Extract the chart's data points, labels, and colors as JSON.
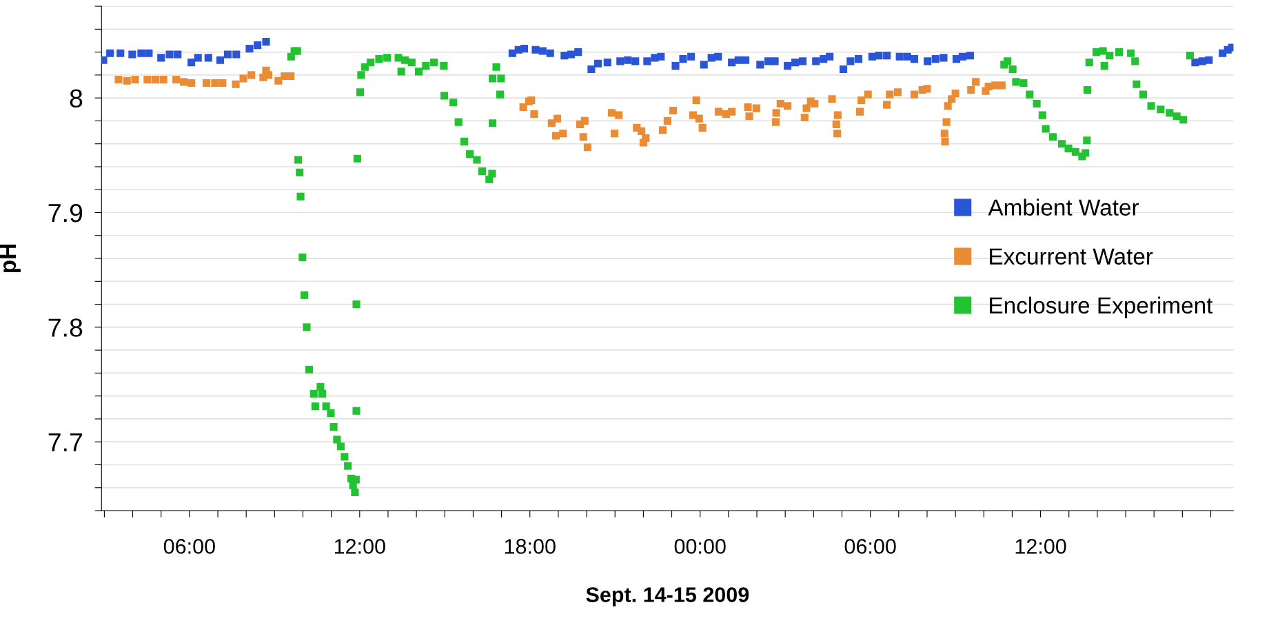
{
  "chart_data": {
    "type": "scatter",
    "xlabel": "Sept. 14-15 2009",
    "ylabel": "pH",
    "marker": "square",
    "grid": "y",
    "legend": "center right",
    "xlim": [
      "2009-09-14T02:54",
      "2009-09-15T18:48"
    ],
    "ylim": [
      7.64,
      8.08
    ],
    "xticks": [
      {
        "value": "2009-09-14T03:00",
        "label": null
      },
      {
        "value": "2009-09-14T04:00",
        "label": null
      },
      {
        "value": "2009-09-14T05:00",
        "label": null
      },
      {
        "value": "2009-09-14T06:00",
        "label": "06:00"
      },
      {
        "value": "2009-09-14T07:00",
        "label": null
      },
      {
        "value": "2009-09-14T08:00",
        "label": null
      },
      {
        "value": "2009-09-14T09:00",
        "label": null
      },
      {
        "value": "2009-09-14T10:00",
        "label": null
      },
      {
        "value": "2009-09-14T11:00",
        "label": null
      },
      {
        "value": "2009-09-14T12:00",
        "label": "12:00"
      },
      {
        "value": "2009-09-14T13:00",
        "label": null
      },
      {
        "value": "2009-09-14T14:00",
        "label": null
      },
      {
        "value": "2009-09-14T15:00",
        "label": null
      },
      {
        "value": "2009-09-14T16:00",
        "label": null
      },
      {
        "value": "2009-09-14T17:00",
        "label": null
      },
      {
        "value": "2009-09-14T18:00",
        "label": "18:00"
      },
      {
        "value": "2009-09-14T19:00",
        "label": null
      },
      {
        "value": "2009-09-14T20:00",
        "label": null
      },
      {
        "value": "2009-09-14T21:00",
        "label": null
      },
      {
        "value": "2009-09-14T22:00",
        "label": null
      },
      {
        "value": "2009-09-14T23:00",
        "label": null
      },
      {
        "value": "2009-09-15T00:00",
        "label": "00:00"
      },
      {
        "value": "2009-09-15T01:00",
        "label": null
      },
      {
        "value": "2009-09-15T02:00",
        "label": null
      },
      {
        "value": "2009-09-15T03:00",
        "label": null
      },
      {
        "value": "2009-09-15T04:00",
        "label": null
      },
      {
        "value": "2009-09-15T05:00",
        "label": null
      },
      {
        "value": "2009-09-15T06:00",
        "label": "06:00"
      },
      {
        "value": "2009-09-15T07:00",
        "label": null
      },
      {
        "value": "2009-09-15T08:00",
        "label": null
      },
      {
        "value": "2009-09-15T09:00",
        "label": null
      },
      {
        "value": "2009-09-15T10:00",
        "label": null
      },
      {
        "value": "2009-09-15T11:00",
        "label": null
      },
      {
        "value": "2009-09-15T12:00",
        "label": "12:00"
      },
      {
        "value": "2009-09-15T13:00",
        "label": null
      },
      {
        "value": "2009-09-15T14:00",
        "label": null
      },
      {
        "value": "2009-09-15T15:00",
        "label": null
      },
      {
        "value": "2009-09-15T16:00",
        "label": null
      },
      {
        "value": "2009-09-15T17:00",
        "label": null
      },
      {
        "value": "2009-09-15T18:00",
        "label": null
      }
    ],
    "yticks": [
      {
        "value": 7.64,
        "label": null
      },
      {
        "value": 7.66,
        "label": null
      },
      {
        "value": 7.68,
        "label": null
      },
      {
        "value": 7.7,
        "label": "7.7"
      },
      {
        "value": 7.72,
        "label": null
      },
      {
        "value": 7.74,
        "label": null
      },
      {
        "value": 7.76,
        "label": null
      },
      {
        "value": 7.78,
        "label": null
      },
      {
        "value": 7.8,
        "label": "7.8"
      },
      {
        "value": 7.82,
        "label": null
      },
      {
        "value": 7.84,
        "label": null
      },
      {
        "value": 7.86,
        "label": null
      },
      {
        "value": 7.88,
        "label": null
      },
      {
        "value": 7.9,
        "label": "7.9"
      },
      {
        "value": 7.92,
        "label": null
      },
      {
        "value": 7.94,
        "label": null
      },
      {
        "value": 7.96,
        "label": null
      },
      {
        "value": 7.98,
        "label": null
      },
      {
        "value": 8,
        "label": "8"
      },
      {
        "value": 8.02,
        "label": null
      },
      {
        "value": 8.04,
        "label": null
      },
      {
        "value": 8.06,
        "label": null
      },
      {
        "value": 8.08,
        "label": null
      }
    ],
    "series": [
      {
        "name": "Ambient Water",
        "color": "#2a55d6",
        "x": [
          "2009-09-14T02:58",
          "2009-09-14T03:12",
          "2009-09-14T03:34",
          "2009-09-14T03:59",
          "2009-09-14T04:18",
          "2009-09-14T04:34",
          "2009-09-14T05:00",
          "2009-09-14T05:18",
          "2009-09-14T05:35",
          "2009-09-14T06:04",
          "2009-09-14T06:18",
          "2009-09-14T06:40",
          "2009-09-14T07:05",
          "2009-09-14T07:21",
          "2009-09-14T07:39",
          "2009-09-14T08:07",
          "2009-09-14T08:24",
          "2009-09-14T08:42",
          "2009-09-14T17:23",
          "2009-09-14T17:36",
          "2009-09-14T17:48",
          "2009-09-14T18:12",
          "2009-09-14T18:27",
          "2009-09-14T18:43",
          "2009-09-14T19:13",
          "2009-09-14T19:27",
          "2009-09-14T19:42",
          "2009-09-14T20:10",
          "2009-09-14T20:24",
          "2009-09-14T20:44",
          "2009-09-14T21:11",
          "2009-09-14T21:27",
          "2009-09-14T21:43",
          "2009-09-14T22:08",
          "2009-09-14T22:24",
          "2009-09-14T22:37",
          "2009-09-14T23:08",
          "2009-09-14T23:24",
          "2009-09-14T23:41",
          "2009-09-15T00:08",
          "2009-09-15T00:24",
          "2009-09-15T00:38",
          "2009-09-15T01:07",
          "2009-09-15T01:21",
          "2009-09-15T01:36",
          "2009-09-15T02:07",
          "2009-09-15T02:24",
          "2009-09-15T02:38",
          "2009-09-15T03:05",
          "2009-09-15T03:21",
          "2009-09-15T03:37",
          "2009-09-15T04:05",
          "2009-09-15T04:21",
          "2009-09-15T04:34",
          "2009-09-15T05:03",
          "2009-09-15T05:18",
          "2009-09-15T05:35",
          "2009-09-15T06:04",
          "2009-09-15T06:18",
          "2009-09-15T06:35",
          "2009-09-15T07:02",
          "2009-09-15T07:18",
          "2009-09-15T07:33",
          "2009-09-15T08:01",
          "2009-09-15T08:18",
          "2009-09-15T08:35",
          "2009-09-15T09:02",
          "2009-09-15T09:15",
          "2009-09-15T09:31",
          "2009-09-15T17:27",
          "2009-09-15T17:42",
          "2009-09-15T17:56",
          "2009-09-15T18:25",
          "2009-09-15T18:36",
          "2009-09-15T18:45"
        ],
        "values": [
          8.033,
          8.039,
          8.039,
          8.038,
          8.039,
          8.039,
          8.035,
          8.038,
          8.038,
          8.031,
          8.035,
          8.035,
          8.033,
          8.038,
          8.038,
          8.043,
          8.046,
          8.049,
          8.039,
          8.042,
          8.043,
          8.042,
          8.041,
          8.039,
          8.037,
          8.038,
          8.04,
          8.025,
          8.03,
          8.031,
          8.032,
          8.033,
          8.032,
          8.032,
          8.035,
          8.036,
          8.028,
          8.034,
          8.036,
          8.029,
          8.035,
          8.036,
          8.031,
          8.033,
          8.033,
          8.029,
          8.032,
          8.032,
          8.028,
          8.031,
          8.032,
          8.032,
          8.034,
          8.036,
          8.025,
          8.032,
          8.034,
          8.036,
          8.037,
          8.037,
          8.036,
          8.036,
          8.034,
          8.032,
          8.034,
          8.035,
          8.034,
          8.036,
          8.037,
          8.031,
          8.032,
          8.033,
          8.039,
          8.042,
          8.044
        ]
      },
      {
        "name": "Excurrent Water",
        "color": "#ea8c35",
        "x": [
          "2009-09-14T03:30",
          "2009-09-14T03:48",
          "2009-09-14T04:05",
          "2009-09-14T04:31",
          "2009-09-14T04:48",
          "2009-09-14T05:05",
          "2009-09-14T05:32",
          "2009-09-14T05:48",
          "2009-09-14T06:04",
          "2009-09-14T06:36",
          "2009-09-14T06:54",
          "2009-09-14T07:10",
          "2009-09-14T07:38",
          "2009-09-14T07:54",
          "2009-09-14T08:11",
          "2009-09-14T08:36",
          "2009-09-14T08:42",
          "2009-09-14T08:47",
          "2009-09-14T09:08",
          "2009-09-14T09:21",
          "2009-09-14T09:34",
          "2009-09-14T17:46",
          "2009-09-14T17:58",
          "2009-09-14T18:03",
          "2009-09-14T18:09",
          "2009-09-14T18:46",
          "2009-09-14T18:55",
          "2009-09-14T18:58",
          "2009-09-14T19:10",
          "2009-09-14T19:46",
          "2009-09-14T19:53",
          "2009-09-14T19:56",
          "2009-09-14T20:02",
          "2009-09-14T20:53",
          "2009-09-14T20:59",
          "2009-09-14T21:08",
          "2009-09-14T21:46",
          "2009-09-14T21:56",
          "2009-09-14T22:00",
          "2009-09-14T22:05",
          "2009-09-14T22:41",
          "2009-09-14T22:51",
          "2009-09-14T23:03",
          "2009-09-14T23:45",
          "2009-09-14T23:52",
          "2009-09-14T23:58",
          "2009-09-15T00:05",
          "2009-09-15T00:39",
          "2009-09-15T00:55",
          "2009-09-15T01:07",
          "2009-09-15T01:41",
          "2009-09-15T01:44",
          "2009-09-15T01:59",
          "2009-09-15T02:40",
          "2009-09-15T02:41",
          "2009-09-15T02:50",
          "2009-09-15T03:05",
          "2009-09-15T03:41",
          "2009-09-15T03:45",
          "2009-09-15T03:54",
          "2009-09-15T04:02",
          "2009-09-15T04:39",
          "2009-09-15T04:48",
          "2009-09-15T04:50",
          "2009-09-15T04:51",
          "2009-09-15T05:38",
          "2009-09-15T05:41",
          "2009-09-15T05:55",
          "2009-09-15T06:35",
          "2009-09-15T06:41",
          "2009-09-15T06:58",
          "2009-09-15T07:33",
          "2009-09-15T07:50",
          "2009-09-15T08:00",
          "2009-09-15T08:37",
          "2009-09-15T08:38",
          "2009-09-15T08:41",
          "2009-09-15T08:44",
          "2009-09-15T08:52",
          "2009-09-15T09:00",
          "2009-09-15T09:33",
          "2009-09-15T09:43",
          "2009-09-15T10:04",
          "2009-09-15T10:10",
          "2009-09-15T10:24",
          "2009-09-15T10:38"
        ],
        "values": [
          8.016,
          8.015,
          8.016,
          8.016,
          8.016,
          8.016,
          8.016,
          8.014,
          8.013,
          8.013,
          8.013,
          8.013,
          8.012,
          8.017,
          8.02,
          8.018,
          8.024,
          8.02,
          8.015,
          8.019,
          8.019,
          7.992,
          7.997,
          7.998,
          7.986,
          7.978,
          7.967,
          7.982,
          7.969,
          7.977,
          7.966,
          7.98,
          7.957,
          7.987,
          7.969,
          7.985,
          7.974,
          7.971,
          7.961,
          7.965,
          7.972,
          7.98,
          7.989,
          7.985,
          7.998,
          7.982,
          7.974,
          7.988,
          7.986,
          7.988,
          7.992,
          7.984,
          7.991,
          7.979,
          7.987,
          7.995,
          7.993,
          7.983,
          7.991,
          7.997,
          7.995,
          7.999,
          7.977,
          7.969,
          7.985,
          7.988,
          7.998,
          8.003,
          7.994,
          8.003,
          8.005,
          8.003,
          8.007,
          8.008,
          7.969,
          7.962,
          7.979,
          7.993,
          7.999,
          8.004,
          8.007,
          8.014,
          8.006,
          8.01,
          8.011,
          8.011
        ]
      },
      {
        "name": "Enclosure Experiment",
        "color": "#22c232",
        "x": [
          "2009-09-14T09:35",
          "2009-09-14T09:42",
          "2009-09-14T09:48",
          "2009-09-14T09:50",
          "2009-09-14T09:53",
          "2009-09-14T09:55",
          "2009-09-14T09:59",
          "2009-09-14T10:03",
          "2009-09-14T10:08",
          "2009-09-14T10:13",
          "2009-09-14T10:23",
          "2009-09-14T10:26",
          "2009-09-14T10:37",
          "2009-09-14T10:41",
          "2009-09-14T10:49",
          "2009-09-14T10:59",
          "2009-09-14T11:05",
          "2009-09-14T11:12",
          "2009-09-14T11:20",
          "2009-09-14T11:28",
          "2009-09-14T11:35",
          "2009-09-14T11:42",
          "2009-09-14T11:46",
          "2009-09-14T11:50",
          "2009-09-14T11:52",
          "2009-09-14T11:53",
          "2009-09-14T11:53",
          "2009-09-14T11:55",
          "2009-09-14T12:01",
          "2009-09-14T12:03",
          "2009-09-14T12:11",
          "2009-09-14T12:23",
          "2009-09-14T12:41",
          "2009-09-14T12:58",
          "2009-09-14T13:22",
          "2009-09-14T13:28",
          "2009-09-14T13:36",
          "2009-09-14T13:50",
          "2009-09-14T14:05",
          "2009-09-14T14:20",
          "2009-09-14T14:37",
          "2009-09-14T14:58",
          "2009-09-14T14:59",
          "2009-09-14T15:18",
          "2009-09-14T15:29",
          "2009-09-14T15:41",
          "2009-09-14T15:53",
          "2009-09-14T16:08",
          "2009-09-14T16:19",
          "2009-09-14T16:34",
          "2009-09-14T16:40",
          "2009-09-14T16:41",
          "2009-09-14T16:41",
          "2009-09-14T16:49",
          "2009-09-14T16:57",
          "2009-09-14T16:59",
          "2009-09-15T10:43",
          "2009-09-15T10:50",
          "2009-09-15T11:01",
          "2009-09-15T11:08",
          "2009-09-15T11:24",
          "2009-09-15T11:37",
          "2009-09-15T11:52",
          "2009-09-15T12:04",
          "2009-09-15T12:11",
          "2009-09-15T12:26",
          "2009-09-15T12:45",
          "2009-09-15T12:59",
          "2009-09-15T13:14",
          "2009-09-15T13:28",
          "2009-09-15T13:35",
          "2009-09-15T13:38",
          "2009-09-15T13:39",
          "2009-09-15T13:43",
          "2009-09-15T13:58",
          "2009-09-15T14:12",
          "2009-09-15T14:15",
          "2009-09-15T14:26",
          "2009-09-15T14:46",
          "2009-09-15T15:11",
          "2009-09-15T15:20",
          "2009-09-15T15:23",
          "2009-09-15T15:37",
          "2009-09-15T15:54",
          "2009-09-15T16:14",
          "2009-09-15T16:33",
          "2009-09-15T16:48",
          "2009-09-15T17:02",
          "2009-09-15T17:16"
        ],
        "values": [
          8.036,
          8.041,
          8.041,
          7.946,
          7.935,
          7.914,
          7.861,
          7.828,
          7.8,
          7.763,
          7.742,
          7.731,
          7.748,
          7.742,
          7.731,
          7.725,
          7.713,
          7.702,
          7.696,
          7.687,
          7.679,
          7.668,
          7.662,
          7.656,
          7.667,
          7.727,
          7.82,
          7.947,
          8.005,
          8.02,
          8.027,
          8.031,
          8.034,
          8.035,
          8.035,
          8.023,
          8.033,
          8.031,
          8.023,
          8.028,
          8.031,
          8.028,
          8.002,
          7.996,
          7.979,
          7.962,
          7.951,
          7.946,
          7.936,
          7.929,
          7.934,
          7.978,
          8.017,
          8.027,
          8.003,
          8.017,
          8.029,
          8.032,
          8.025,
          8.014,
          8.013,
          8.003,
          7.995,
          7.985,
          7.973,
          7.966,
          7.96,
          7.956,
          7.953,
          7.949,
          7.952,
          7.963,
          8.007,
          8.031,
          8.04,
          8.041,
          8.028,
          8.037,
          8.04,
          8.039,
          8.032,
          8.012,
          8.003,
          7.993,
          7.99,
          7.987,
          7.984,
          7.981,
          8.037
        ]
      }
    ]
  }
}
